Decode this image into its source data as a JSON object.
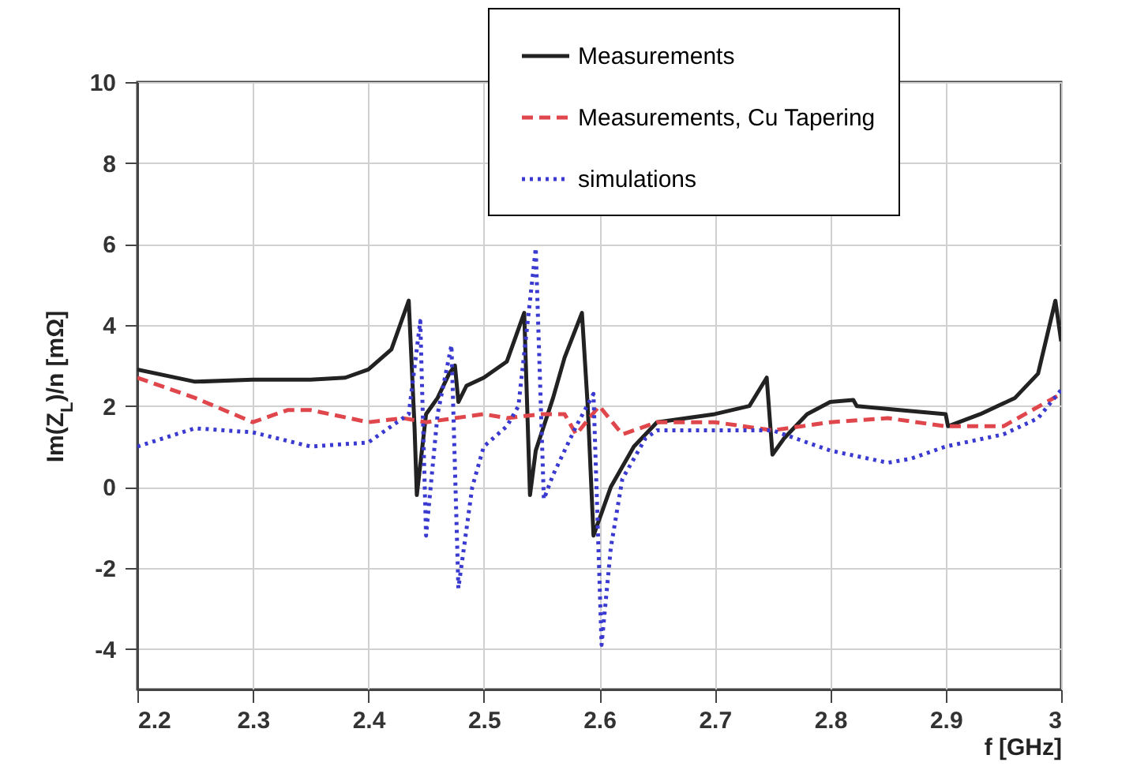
{
  "chart_data": {
    "type": "line",
    "xlabel": "f [GHz]",
    "ylabel": "Im(Z$_{L}$)/n [mΩ]",
    "xlim": [
      2.2,
      3.0
    ],
    "xticks": [
      2.2,
      2.3,
      2.4,
      2.5,
      2.6,
      2.7,
      2.8,
      2.9,
      3
    ],
    "ylim": [
      -5,
      10
    ],
    "yticks": [
      -4,
      -2,
      0,
      2,
      4,
      6,
      8,
      10
    ],
    "grid": true,
    "legend": "top right",
    "series": [
      {
        "name": "Measurements",
        "color": "#222222",
        "line_style": "solid",
        "x": [
          2.2,
          2.25,
          2.3,
          2.35,
          2.38,
          2.4,
          2.42,
          2.435,
          2.44,
          2.442,
          2.45,
          2.46,
          2.47,
          2.475,
          2.478,
          2.485,
          2.5,
          2.52,
          2.535,
          2.54,
          2.545,
          2.56,
          2.57,
          2.585,
          2.59,
          2.595,
          2.61,
          2.63,
          2.65,
          2.7,
          2.73,
          2.745,
          2.75,
          2.76,
          2.78,
          2.8,
          2.82,
          2.823,
          2.86,
          2.9,
          2.902,
          2.93,
          2.96,
          2.98,
          2.995,
          3.0
        ],
        "values": [
          2.9,
          2.6,
          2.65,
          2.65,
          2.7,
          2.9,
          3.4,
          4.6,
          1.5,
          -0.2,
          1.8,
          2.2,
          2.8,
          3.0,
          2.1,
          2.5,
          2.7,
          3.1,
          4.3,
          -0.2,
          0.9,
          2.2,
          3.2,
          4.3,
          2.0,
          -1.2,
          0.0,
          1.0,
          1.6,
          1.8,
          2.0,
          2.7,
          0.8,
          1.2,
          1.8,
          2.1,
          2.15,
          2.0,
          1.9,
          1.8,
          1.5,
          1.8,
          2.2,
          2.8,
          4.6,
          3.6
        ]
      },
      {
        "name": "Measurements, Cu Tapering",
        "color": "#e0474c",
        "line_style": "dashed",
        "x": [
          2.2,
          2.25,
          2.3,
          2.33,
          2.35,
          2.4,
          2.43,
          2.45,
          2.5,
          2.52,
          2.55,
          2.57,
          2.58,
          2.6,
          2.62,
          2.65,
          2.7,
          2.75,
          2.8,
          2.85,
          2.9,
          2.95,
          3.0
        ],
        "values": [
          2.7,
          2.2,
          1.6,
          1.9,
          1.9,
          1.6,
          1.7,
          1.6,
          1.8,
          1.7,
          1.8,
          1.8,
          1.3,
          2.0,
          1.3,
          1.6,
          1.6,
          1.4,
          1.6,
          1.7,
          1.5,
          1.5,
          2.3
        ]
      },
      {
        "name": "simulations",
        "color": "#3a3ad0",
        "line_style": "dotted",
        "x": [
          2.2,
          2.25,
          2.3,
          2.35,
          2.4,
          2.43,
          2.435,
          2.445,
          2.45,
          2.46,
          2.472,
          2.478,
          2.49,
          2.5,
          2.52,
          2.53,
          2.545,
          2.552,
          2.56,
          2.58,
          2.595,
          2.602,
          2.61,
          2.62,
          2.64,
          2.65,
          2.7,
          2.75,
          2.8,
          2.85,
          2.87,
          2.9,
          2.95,
          2.98,
          3.0
        ],
        "values": [
          1.0,
          1.45,
          1.35,
          1.0,
          1.1,
          1.7,
          1.8,
          4.1,
          -1.2,
          1.8,
          3.5,
          -2.5,
          0.0,
          1.0,
          1.5,
          2.0,
          5.9,
          -0.3,
          0.3,
          1.5,
          2.3,
          -3.9,
          -1.5,
          0.2,
          1.2,
          1.4,
          1.4,
          1.4,
          0.9,
          0.6,
          0.7,
          1.0,
          1.3,
          1.7,
          2.4
        ]
      }
    ]
  }
}
